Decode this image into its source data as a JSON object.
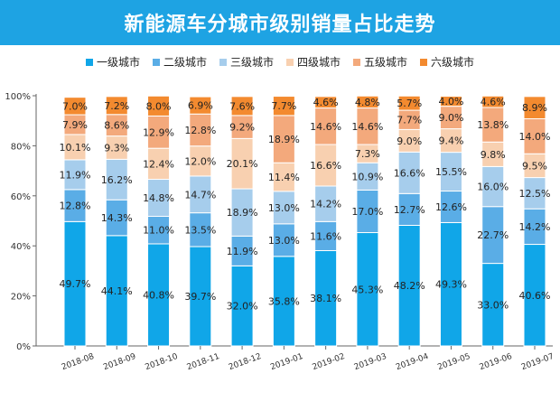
{
  "chart_data": {
    "type": "bar",
    "stacked": true,
    "title": "新能源车分城市级别销量占比走势",
    "categories": [
      "2018-08",
      "2018-09",
      "2018-10",
      "2018-11",
      "2018-12",
      "2019-01",
      "2019-02",
      "2019-03",
      "2019-04",
      "2019-05",
      "2019-06",
      "2019-07"
    ],
    "series": [
      {
        "name": "一级城市",
        "color": "#10a6e8",
        "values": [
          49.7,
          44.1,
          40.8,
          39.7,
          32.0,
          35.8,
          38.1,
          45.3,
          48.2,
          49.3,
          33.0,
          40.6
        ]
      },
      {
        "name": "二级城市",
        "color": "#5aade6",
        "values": [
          12.8,
          14.3,
          11.0,
          13.5,
          11.9,
          13.0,
          11.6,
          17.0,
          12.7,
          12.6,
          22.7,
          14.2
        ]
      },
      {
        "name": "三级城市",
        "color": "#a6cdec",
        "values": [
          11.9,
          16.2,
          14.8,
          14.7,
          18.9,
          13.0,
          14.2,
          10.9,
          16.6,
          15.5,
          16.0,
          12.5
        ]
      },
      {
        "name": "四级城市",
        "color": "#f8d0b0",
        "values": [
          10.1,
          9.3,
          12.4,
          12.0,
          20.1,
          11.4,
          16.6,
          7.3,
          9.0,
          9.4,
          9.8,
          9.5
        ]
      },
      {
        "name": "五级城市",
        "color": "#f3a97c",
        "values": [
          7.9,
          8.6,
          12.9,
          12.8,
          9.2,
          18.9,
          14.6,
          14.6,
          7.7,
          9.0,
          13.8,
          14.0
        ]
      },
      {
        "name": "六级城市",
        "color": "#f38a2f",
        "values": [
          7.0,
          7.2,
          8.0,
          6.9,
          7.6,
          7.7,
          4.6,
          4.8,
          5.7,
          4.0,
          4.6,
          8.9
        ]
      }
    ],
    "ylim": [
      0,
      100
    ],
    "yticks": [
      "0%",
      "20%",
      "40%",
      "60%",
      "80%",
      "100%"
    ],
    "grid": false,
    "legend": "top"
  }
}
